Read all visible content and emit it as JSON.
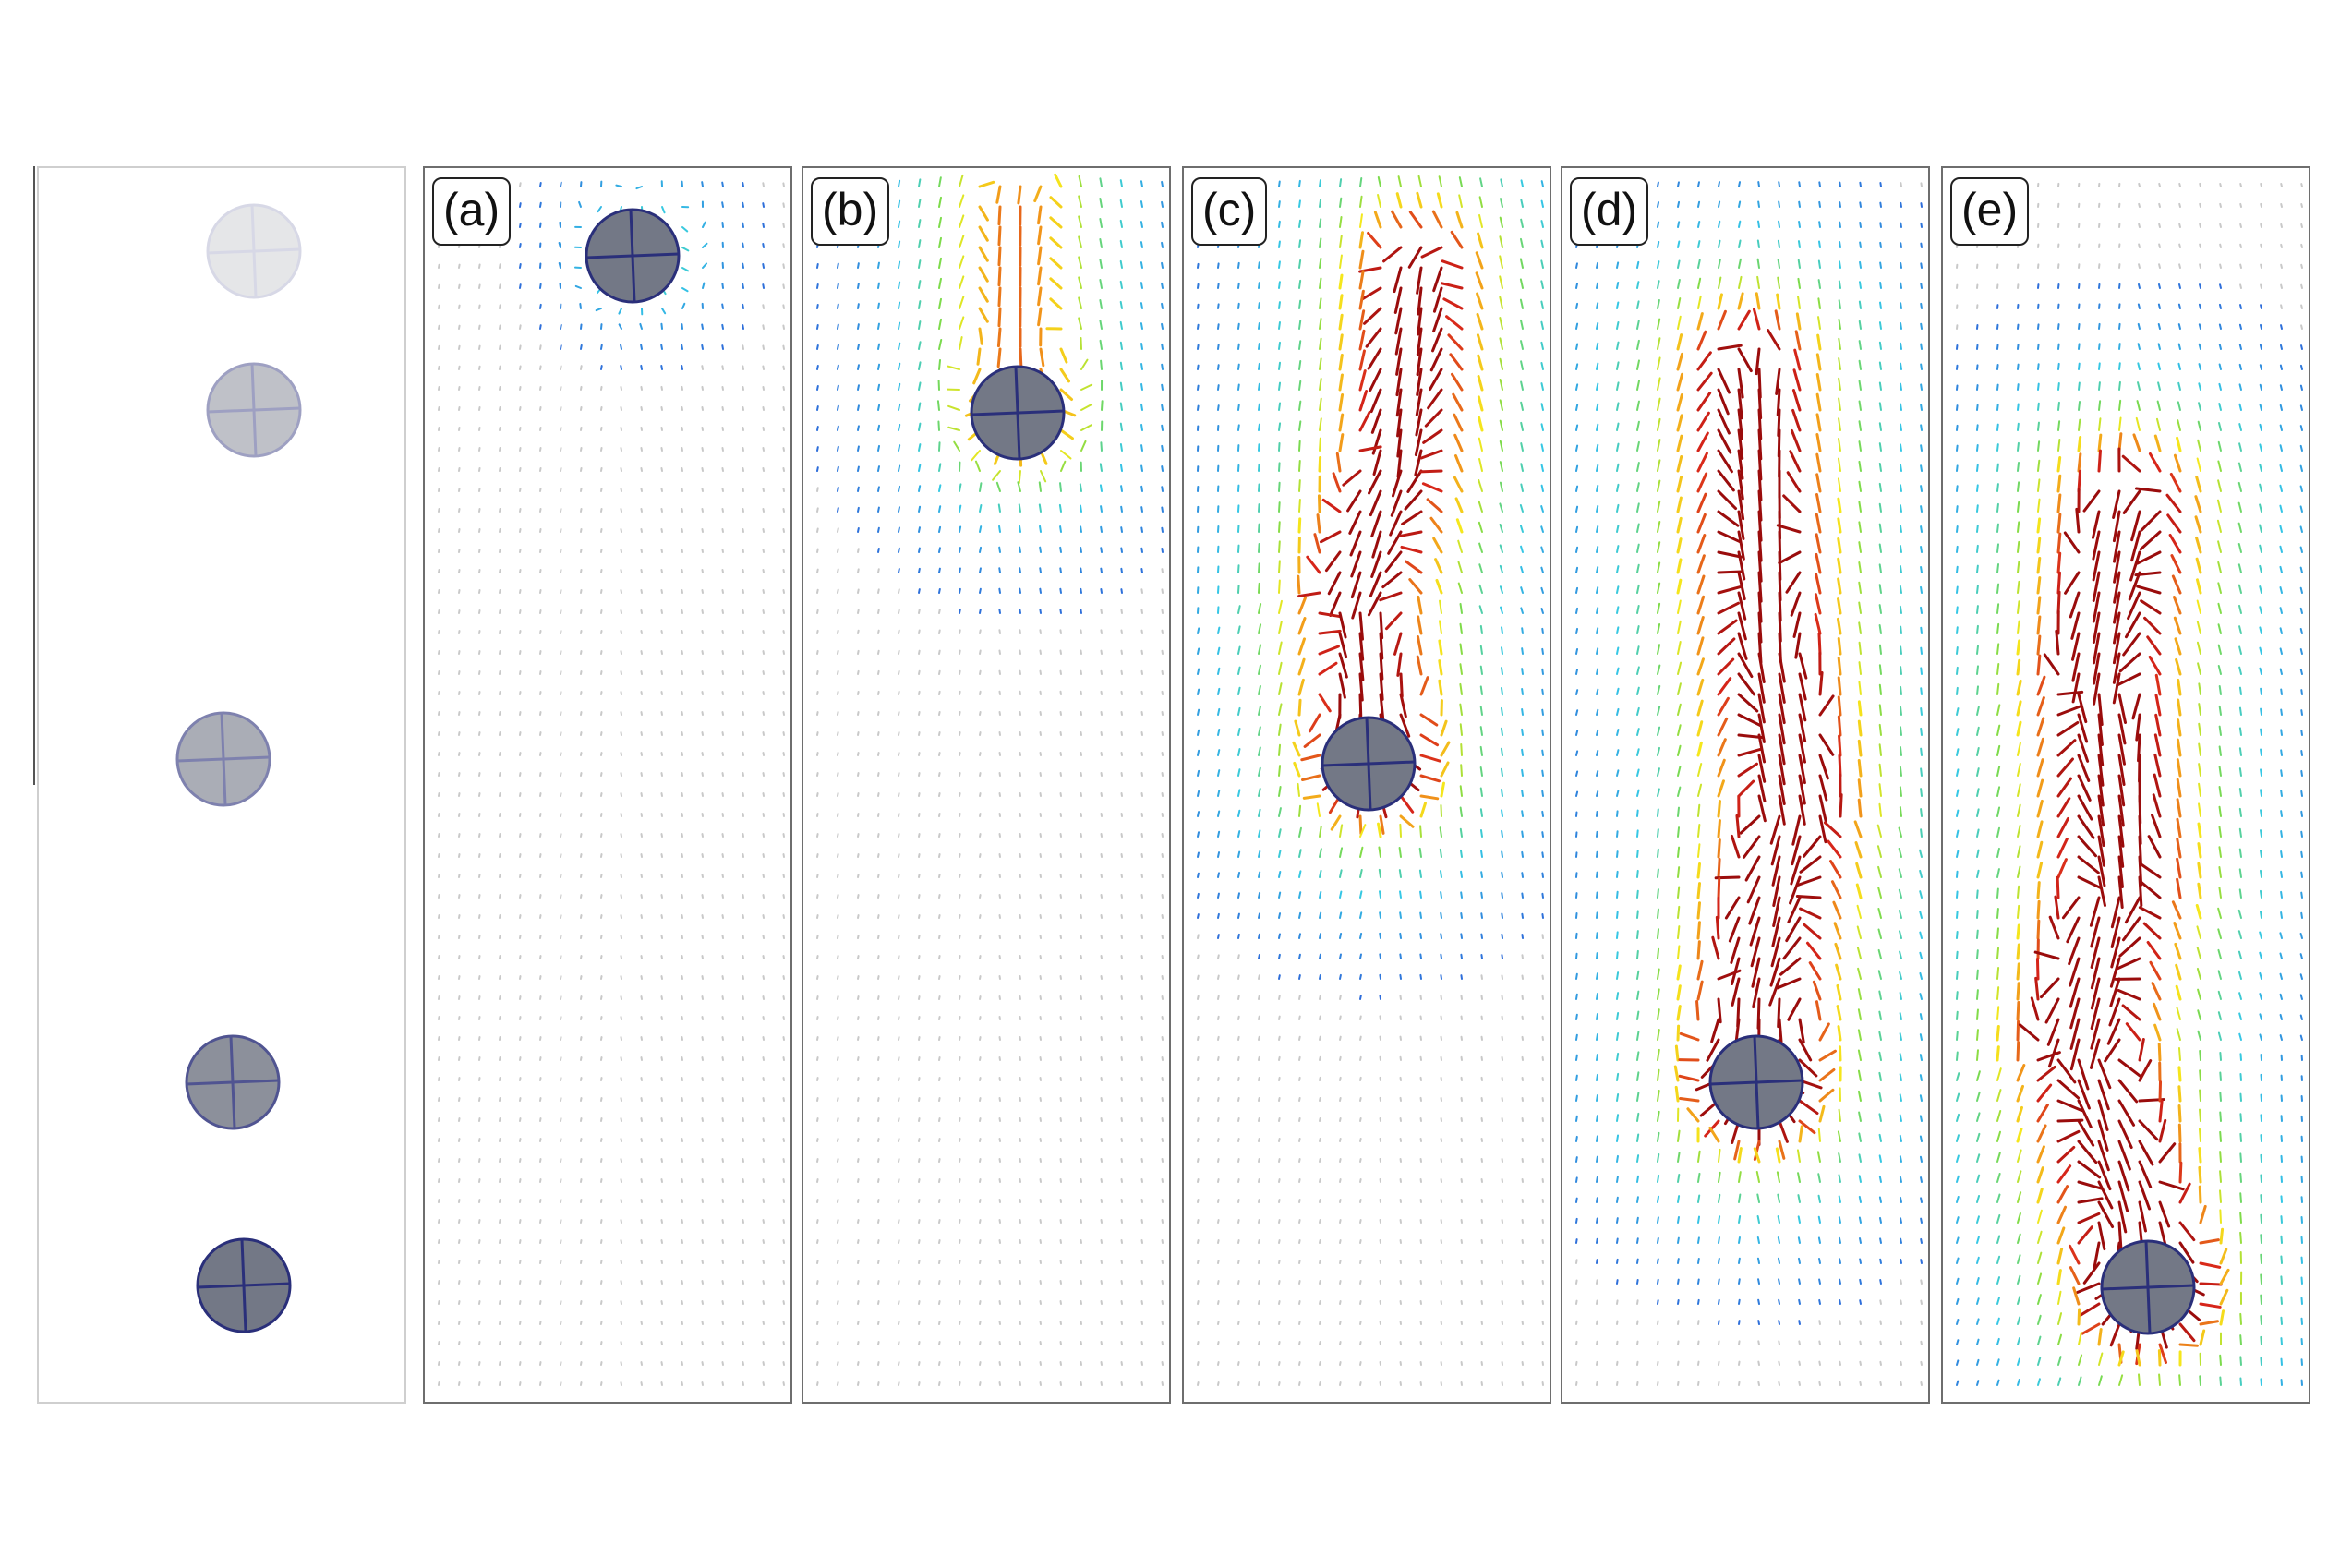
{
  "panels": [
    {
      "label": "",
      "kind": "trajectory"
    },
    {
      "label": "(a)",
      "kind": "flow",
      "strength": 0.18
    },
    {
      "label": "(b)",
      "kind": "flow",
      "strength": 0.55
    },
    {
      "label": "(c)",
      "kind": "flow",
      "strength": 0.85
    },
    {
      "label": "(d)",
      "kind": "flow",
      "strength": 0.95
    },
    {
      "label": "(e)",
      "kind": "flow",
      "strength": 1.0
    }
  ],
  "colors": {
    "particle_fill": "#737886",
    "particle_stroke": "#2a2f7a",
    "vector_scale": [
      "#2b4fd6",
      "#35c8e6",
      "#7ddb4a",
      "#f5e81c",
      "#f29a1a",
      "#d8261a",
      "#9a0c0c"
    ]
  }
}
